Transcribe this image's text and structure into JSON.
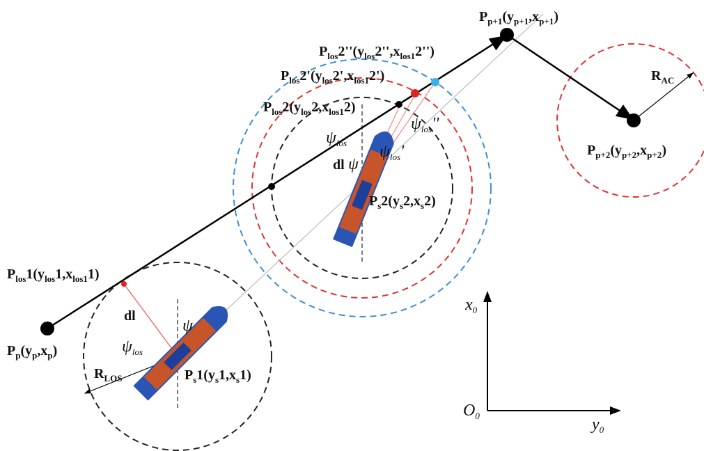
{
  "labels": [
    {
      "parts": [
        "P",
        "p+1",
        "(y",
        "p+1",
        ",x",
        "p+1",
        ")"
      ]
    },
    {
      "parts": [
        "P",
        "los",
        "2''(y",
        "los",
        "2'',x",
        "los1",
        "2'')"
      ]
    },
    {
      "parts": [
        "P",
        "los",
        "2'(y",
        "los",
        "2',x",
        "los1",
        "2')"
      ]
    },
    {
      "parts": [
        "P",
        "los",
        "2(y",
        "los",
        "2,x",
        "los1",
        "2)"
      ]
    },
    {
      "parts": [
        "R",
        "AC"
      ]
    },
    {
      "parts": [
        "P",
        "p+2",
        "(y",
        "p+2",
        ",x",
        "p+2",
        ")"
      ]
    },
    {
      "parts": [
        "ψ",
        "los"
      ]
    },
    {
      "parts": [
        "dl"
      ]
    },
    {
      "parts": [
        "ψ"
      ]
    },
    {
      "parts": [
        "ψ",
        "los",
        "'"
      ]
    },
    {
      "parts": [
        "ψ",
        "los",
        "''"
      ]
    },
    {
      "parts": [
        "P",
        "s",
        "2(y",
        "s",
        "2,x",
        "s",
        "2)"
      ]
    },
    {
      "parts": [
        "P",
        "los",
        "1(y",
        "los",
        "1,x",
        "los1",
        "1)"
      ]
    },
    {
      "parts": [
        "dl"
      ]
    },
    {
      "parts": [
        "ψ"
      ]
    },
    {
      "parts": [
        "ψ",
        "los"
      ]
    },
    {
      "parts": [
        "P",
        "p",
        "(y",
        "p",
        ",x",
        "p",
        ")"
      ]
    },
    {
      "parts": [
        "R",
        "LOS"
      ]
    },
    {
      "parts": [
        "P",
        "s",
        "1(y",
        "s",
        "1,x",
        "s",
        "1)"
      ]
    },
    {
      "parts": [
        "x",
        "0"
      ]
    },
    {
      "parts": [
        "O",
        "0"
      ]
    },
    {
      "parts": [
        "y",
        "0"
      ]
    }
  ]
}
